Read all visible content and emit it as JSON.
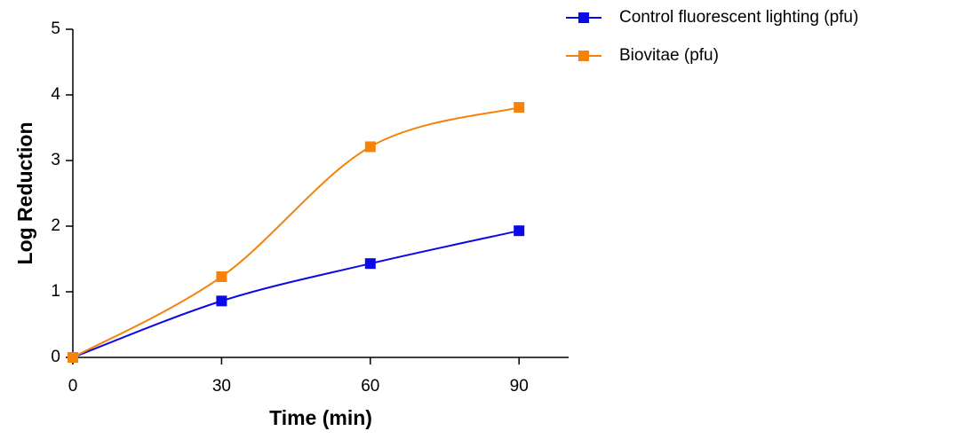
{
  "chart_data": {
    "type": "line",
    "x_label": "Time (min)",
    "y_label": "Log Reduction",
    "x": [
      0,
      30,
      60,
      90
    ],
    "series": [
      {
        "name": "Control fluorescent lighting (pfu)",
        "color": "#0a0ae6",
        "values": [
          0,
          0.86,
          1.43,
          1.93
        ]
      },
      {
        "name": "Biovitae (pfu)",
        "color": "#f5820a",
        "values": [
          0,
          1.23,
          3.21,
          3.81
        ]
      }
    ],
    "xlim": [
      0,
      100
    ],
    "xticks": [
      0,
      30,
      60,
      90
    ],
    "ylim": [
      0,
      5
    ],
    "yticks": [
      0,
      1,
      2,
      3,
      4,
      5
    ],
    "smooth": true,
    "legend": "top-right"
  }
}
